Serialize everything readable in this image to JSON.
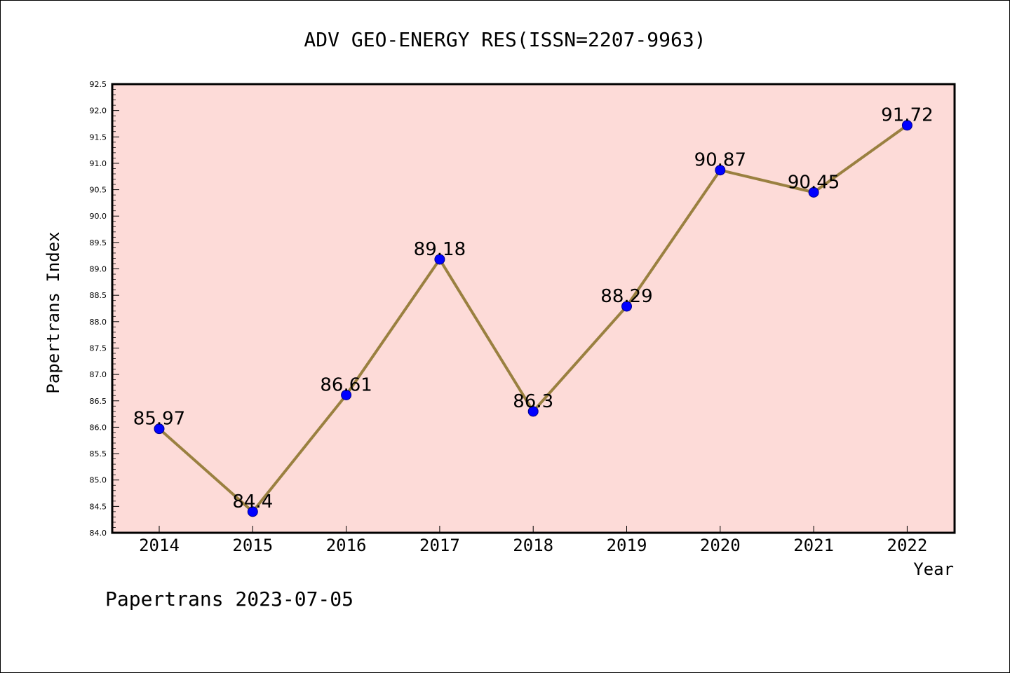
{
  "chart_data": {
    "type": "line",
    "title": "ADV GEO-ENERGY RES(ISSN=2207-9963)",
    "xlabel": "Year",
    "ylabel": "Papertrans Index",
    "footer": "Papertrans 2023-07-05",
    "categories": [
      "2014",
      "2015",
      "2016",
      "2017",
      "2018",
      "2019",
      "2020",
      "2021",
      "2022"
    ],
    "values": [
      85.97,
      84.4,
      86.61,
      89.18,
      86.3,
      88.29,
      90.87,
      90.45,
      91.72
    ],
    "data_labels": [
      "85.97",
      "84.4",
      "86.61",
      "89.18",
      "86.3",
      "88.29",
      "90.87",
      "90.45",
      "91.72"
    ],
    "ylim": [
      84.0,
      92.5
    ],
    "yticks": [
      "84.0",
      "84.5",
      "85.0",
      "85.5",
      "86.0",
      "86.5",
      "87.0",
      "87.5",
      "88.0",
      "88.5",
      "89.0",
      "89.5",
      "90.0",
      "90.5",
      "91.0",
      "91.5",
      "92.0",
      "92.5"
    ],
    "grid": false,
    "legend": "none",
    "colors": {
      "plot_background": "#fddbd8",
      "line": "#9a8040",
      "marker": "#0000ff",
      "marker_edge": "#00008b",
      "text": "#000000"
    }
  }
}
